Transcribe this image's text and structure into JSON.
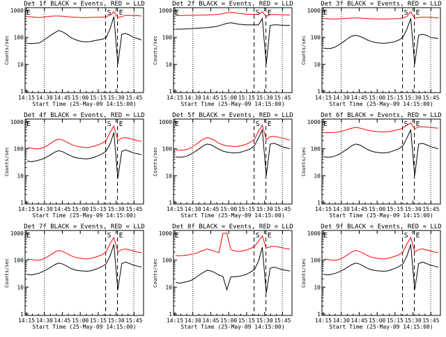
{
  "colors": {
    "events": "#000000",
    "lld": "#ff0000",
    "axis": "#000000",
    "background": "#ffffff"
  },
  "chart_data": [
    {
      "type": "line",
      "title": "Det 1f BLACK = Events, RED = LLD",
      "ylabel": "Counts/sec",
      "xlabel": "Start Time (25-May-09 14:15:00)",
      "x_ticks": [
        "14:15",
        "14:30",
        "14:45",
        "15:00",
        "15:15",
        "15:30",
        "15:45"
      ],
      "y_ticks": [
        "1",
        "10",
        "100",
        "1000"
      ],
      "ylim": [
        1,
        1000
      ],
      "yscale": "log",
      "markers": {
        "s": "S",
        "e": "E",
        "s_pos": 0.68,
        "e_pos": 0.78
      },
      "series": [
        {
          "color": "red",
          "values": [
            600,
            580,
            560,
            540,
            560,
            590,
            610,
            620,
            620,
            610,
            590,
            570,
            560,
            550,
            540,
            540,
            550,
            560,
            560,
            560,
            600,
            650,
            900,
            540,
            600,
            650,
            660,
            650,
            640,
            620
          ]
        },
        {
          "color": "black",
          "values": [
            60,
            58,
            60,
            62,
            75,
            95,
            120,
            150,
            180,
            160,
            130,
            100,
            85,
            75,
            70,
            68,
            70,
            75,
            80,
            85,
            95,
            200,
            600,
            10,
            130,
            140,
            120,
            100,
            90,
            80
          ]
        }
      ]
    },
    {
      "type": "line",
      "title": "Det 2f BLACK = Events, RED = LLD",
      "ylabel": "Counts/sec",
      "xlabel": "Start Time (25-May-09 14:15:00)",
      "x_ticks": [
        "14:15",
        "14:30",
        "14:45",
        "15:00",
        "15:15",
        "15:30",
        "15:45"
      ],
      "y_ticks": [
        "1",
        "10",
        "100",
        "1000"
      ],
      "ylim": [
        1,
        1000
      ],
      "yscale": "log",
      "markers": {
        "s": "S",
        "e": "E",
        "s_pos": 0.68,
        "e_pos": 0.78
      },
      "series": [
        {
          "color": "red",
          "values": [
            650,
            640,
            650,
            660,
            660,
            660,
            670,
            670,
            680,
            690,
            700,
            720,
            760,
            820,
            850,
            820,
            780,
            750,
            720,
            720,
            720,
            700,
            900,
            600,
            700,
            710,
            700,
            690,
            680,
            680
          ]
        },
        {
          "color": "black",
          "values": [
            200,
            200,
            205,
            210,
            210,
            215,
            220,
            225,
            230,
            240,
            250,
            270,
            300,
            330,
            350,
            330,
            310,
            300,
            290,
            290,
            290,
            290,
            500,
            10,
            280,
            290,
            290,
            280,
            280,
            280
          ]
        }
      ]
    },
    {
      "type": "line",
      "title": "Det 3f BLACK = Events, RED = LLD",
      "ylabel": "Counts/sec",
      "xlabel": "Start Time (25-May-09 14:15:00)",
      "x_ticks": [
        "14:15",
        "14:30",
        "14:45",
        "15:00",
        "15:15",
        "15:30",
        "15:45"
      ],
      "y_ticks": [
        "1",
        "10",
        "100",
        "1000"
      ],
      "ylim": [
        1,
        1000
      ],
      "yscale": "log",
      "markers": {
        "s": "S",
        "e": "E",
        "s_pos": 0.68,
        "e_pos": 0.78
      },
      "series": [
        {
          "color": "red",
          "values": [
            500,
            490,
            480,
            480,
            490,
            500,
            510,
            520,
            530,
            520,
            510,
            500,
            490,
            480,
            480,
            480,
            480,
            490,
            490,
            500,
            520,
            600,
            900,
            500,
            550,
            560,
            560,
            550,
            540,
            530
          ]
        },
        {
          "color": "black",
          "values": [
            40,
            38,
            40,
            45,
            55,
            70,
            90,
            110,
            120,
            110,
            95,
            80,
            70,
            65,
            62,
            60,
            62,
            65,
            70,
            80,
            100,
            200,
            500,
            10,
            120,
            130,
            120,
            100,
            95,
            90
          ]
        }
      ]
    },
    {
      "type": "line",
      "title": "Det 4f BLACK = Events, RED = LLD",
      "ylabel": "Counts/sec",
      "xlabel": "Start Time (25-May-09 14:15:00)",
      "x_ticks": [
        "14:15",
        "14:30",
        "14:45",
        "15:00",
        "15:15",
        "15:30",
        "15:45"
      ],
      "y_ticks": [
        "1",
        "10",
        "100",
        "1000"
      ],
      "ylim": [
        1,
        1000
      ],
      "yscale": "log",
      "markers": {
        "s": "S",
        "e": "E",
        "s_pos": 0.68,
        "e_pos": 0.78
      },
      "series": [
        {
          "color": "red",
          "values": [
            110,
            105,
            100,
            100,
            110,
            130,
            160,
            200,
            230,
            210,
            180,
            150,
            130,
            120,
            115,
            110,
            115,
            125,
            140,
            160,
            200,
            400,
            700,
            200,
            250,
            260,
            240,
            220,
            200,
            190
          ]
        },
        {
          "color": "black",
          "values": [
            35,
            33,
            35,
            38,
            42,
            50,
            60,
            75,
            85,
            78,
            65,
            55,
            48,
            45,
            43,
            42,
            44,
            48,
            55,
            65,
            80,
            150,
            400,
            8,
            80,
            90,
            80,
            70,
            65,
            60
          ]
        }
      ]
    },
    {
      "type": "line",
      "title": "Det 5f BLACK = Events, RED = LLD",
      "ylabel": "Counts/sec",
      "xlabel": "Start Time (25-May-09 14:15:00)",
      "x_ticks": [
        "14:15",
        "14:30",
        "14:45",
        "15:00",
        "15:15",
        "15:30",
        "15:45"
      ],
      "y_ticks": [
        "1",
        "10",
        "100",
        "1000"
      ],
      "ylim": [
        1,
        1000
      ],
      "yscale": "log",
      "markers": {
        "s": "S",
        "e": "E",
        "s_pos": 0.68,
        "e_pos": 0.78
      },
      "series": [
        {
          "color": "red",
          "values": [
            90,
            88,
            90,
            95,
            110,
            140,
            180,
            230,
            260,
            240,
            200,
            160,
            140,
            130,
            125,
            120,
            125,
            135,
            150,
            175,
            220,
            450,
            750,
            220,
            280,
            290,
            270,
            250,
            230,
            210
          ]
        },
        {
          "color": "black",
          "values": [
            50,
            48,
            50,
            55,
            65,
            80,
            100,
            130,
            150,
            140,
            115,
            95,
            82,
            75,
            72,
            70,
            72,
            78,
            88,
            100,
            130,
            250,
            500,
            10,
            150,
            160,
            140,
            120,
            110,
            100
          ]
        }
      ]
    },
    {
      "type": "line",
      "title": "Det 6f BLACK = Events, RED = LLD",
      "ylabel": "Counts/sec",
      "xlabel": "Start Time (25-May-09 14:15:00)",
      "x_ticks": [
        "14:15",
        "14:30",
        "14:45",
        "15:00",
        "15:15",
        "15:30",
        "15:45"
      ],
      "y_ticks": [
        "1",
        "10",
        "100",
        "1000"
      ],
      "ylim": [
        1,
        1000
      ],
      "yscale": "log",
      "markers": {
        "s": "S",
        "e": "E",
        "s_pos": 0.68,
        "e_pos": 0.78
      },
      "series": [
        {
          "color": "red",
          "values": [
            400,
            395,
            400,
            410,
            430,
            470,
            520,
            580,
            620,
            590,
            540,
            490,
            460,
            440,
            430,
            420,
            430,
            450,
            480,
            520,
            580,
            750,
            900,
            550,
            650,
            660,
            640,
            620,
            600,
            580
          ]
        },
        {
          "color": "black",
          "values": [
            50,
            48,
            50,
            55,
            65,
            80,
            100,
            130,
            150,
            140,
            115,
            95,
            82,
            75,
            72,
            70,
            72,
            78,
            88,
            100,
            130,
            250,
            500,
            10,
            150,
            160,
            140,
            120,
            110,
            100
          ]
        }
      ]
    },
    {
      "type": "line",
      "title": "Det 7f BLACK = Events, RED = LLD",
      "ylabel": "Counts/sec",
      "xlabel": "Start Time (25-May-09 14:15:00)",
      "x_ticks": [
        "14:15",
        "14:30",
        "14:45",
        "15:00",
        "15:15",
        "15:30",
        "15:45"
      ],
      "y_ticks": [
        "1",
        "10",
        "100",
        "1000"
      ],
      "ylim": [
        1,
        1000
      ],
      "yscale": "log",
      "markers": {
        "s": "S",
        "e": "E",
        "s_pos": 0.68,
        "e_pos": 0.78
      },
      "series": [
        {
          "color": "red",
          "values": [
            110,
            105,
            100,
            100,
            110,
            130,
            160,
            200,
            230,
            210,
            180,
            150,
            130,
            120,
            115,
            110,
            115,
            125,
            140,
            160,
            200,
            400,
            700,
            200,
            250,
            260,
            240,
            220,
            200,
            190
          ]
        },
        {
          "color": "black",
          "values": [
            30,
            28,
            30,
            33,
            38,
            45,
            55,
            68,
            78,
            72,
            60,
            50,
            44,
            41,
            40,
            39,
            40,
            44,
            50,
            58,
            72,
            140,
            380,
            8,
            75,
            85,
            75,
            65,
            60,
            55
          ]
        }
      ]
    },
    {
      "type": "line",
      "title": "Det 8f BLACK = Events, RED = LLD",
      "ylabel": "Counts/sec",
      "xlabel": "Start Time (25-May-09 14:15:00)",
      "x_ticks": [
        "14:15",
        "14:30",
        "14:45",
        "15:00",
        "15:15",
        "15:30",
        "15:45"
      ],
      "y_ticks": [
        "1",
        "10",
        "100",
        "1000"
      ],
      "ylim": [
        1,
        1000
      ],
      "yscale": "log",
      "markers": {
        "s": "S",
        "e": "E",
        "s_pos": 0.68,
        "e_pos": 0.78
      },
      "series": [
        {
          "color": "red",
          "values": [
            150,
            145,
            150,
            155,
            165,
            180,
            200,
            230,
            260,
            240,
            210,
            190,
            1000,
            1000,
            250,
            220,
            210,
            220,
            240,
            270,
            320,
            500,
            800,
            280,
            320,
            330,
            310,
            290,
            270,
            260
          ]
        },
        {
          "color": "black",
          "values": [
            15,
            14,
            15,
            16,
            18,
            22,
            28,
            35,
            42,
            40,
            34,
            28,
            25,
            8,
            24,
            24,
            25,
            27,
            30,
            36,
            45,
            90,
            300,
            6,
            50,
            55,
            50,
            45,
            42,
            40
          ]
        }
      ]
    },
    {
      "type": "line",
      "title": "Det 9f BLACK = Events, RED = LLD",
      "ylabel": "Counts/sec",
      "xlabel": "Start Time (25-May-09 14:15:00)",
      "x_ticks": [
        "14:15",
        "14:30",
        "14:45",
        "15:00",
        "15:15",
        "15:30",
        "15:45"
      ],
      "y_ticks": [
        "1",
        "10",
        "100",
        "1000"
      ],
      "ylim": [
        1,
        1000
      ],
      "yscale": "log",
      "markers": {
        "s": "S",
        "e": "E",
        "s_pos": 0.68,
        "e_pos": 0.78
      },
      "series": [
        {
          "color": "red",
          "values": [
            110,
            105,
            100,
            100,
            110,
            130,
            160,
            200,
            230,
            210,
            180,
            150,
            130,
            120,
            115,
            110,
            115,
            125,
            140,
            160,
            200,
            400,
            700,
            200,
            250,
            260,
            240,
            220,
            200,
            190
          ]
        },
        {
          "color": "black",
          "values": [
            30,
            28,
            30,
            33,
            38,
            45,
            55,
            68,
            78,
            72,
            60,
            50,
            44,
            41,
            40,
            39,
            40,
            44,
            50,
            58,
            72,
            140,
            380,
            8,
            75,
            85,
            75,
            65,
            60,
            55
          ]
        }
      ]
    }
  ]
}
